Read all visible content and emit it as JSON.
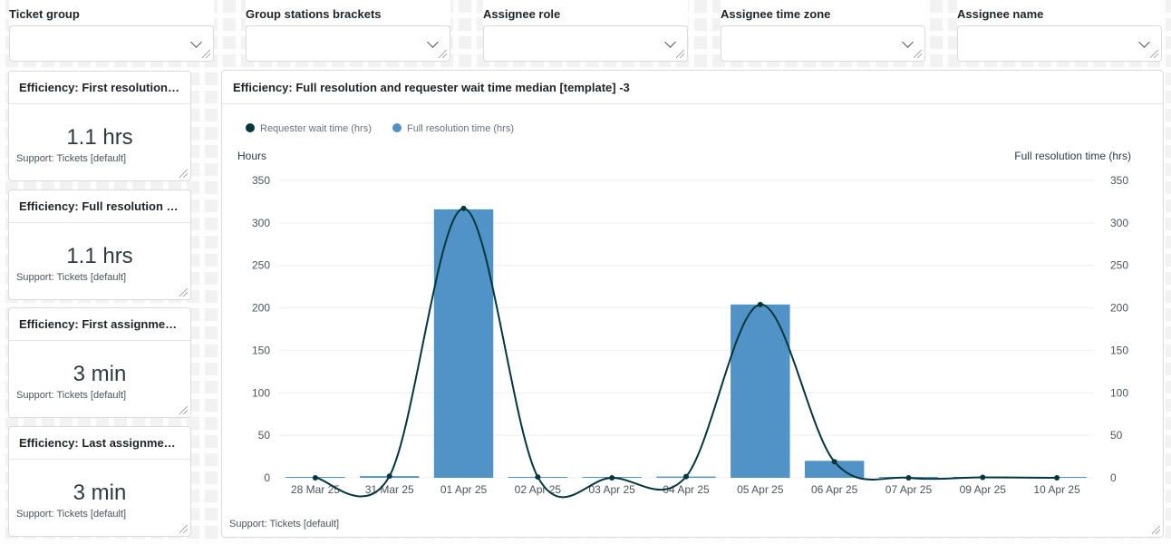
{
  "filters": [
    {
      "label": "Ticket group",
      "value": ""
    },
    {
      "label": "Group stations brackets",
      "value": ""
    },
    {
      "label": "Assignee role",
      "value": ""
    },
    {
      "label": "Assignee time zone",
      "value": ""
    },
    {
      "label": "Assignee name",
      "value": ""
    }
  ],
  "kpis": [
    {
      "title": "Efficiency: First resolution t...",
      "value": "1.1 hrs",
      "source": "Support: Tickets [default]"
    },
    {
      "title": "Efficiency: Full resolution ti...",
      "value": "1.1 hrs",
      "source": "Support: Tickets [default]"
    },
    {
      "title": "Efficiency: First assignment...",
      "value": "3 min",
      "source": "Support: Tickets [default]"
    },
    {
      "title": "Efficiency: Last assignment...",
      "value": "3 min",
      "source": "Support: Tickets [default]"
    }
  ],
  "chart": {
    "title": "Efficiency: Full resolution and requester wait time median [template] -3",
    "source": "Support: Tickets [default]"
  },
  "chart_data": {
    "type": "bar",
    "categories": [
      "28 Mar 25",
      "31 Mar 25",
      "01 Apr 25",
      "02 Apr 25",
      "03 Apr 25",
      "04 Apr 25",
      "05 Apr 25",
      "06 Apr 25",
      "07 Apr 25",
      "09 Apr 25",
      "10 Apr 25"
    ],
    "series": [
      {
        "name": "Requester wait time (hrs)",
        "type": "line",
        "color": "#03363d",
        "values": [
          0,
          2,
          317,
          1,
          0,
          1.5,
          204,
          19,
          0,
          0.5,
          0
        ]
      },
      {
        "name": "Full resolution time (hrs)",
        "type": "bar",
        "color": "#5293c7",
        "values": [
          0,
          2,
          316,
          1,
          0,
          1.5,
          204,
          20,
          0,
          0.5,
          0
        ]
      }
    ],
    "ylabel": "Hours",
    "y2label": "Full resolution time (hrs)",
    "ylim": [
      0,
      350
    ],
    "yticks": [
      0,
      50,
      100,
      150,
      200,
      250,
      300,
      350
    ],
    "grid": true,
    "legend": "top-left"
  }
}
